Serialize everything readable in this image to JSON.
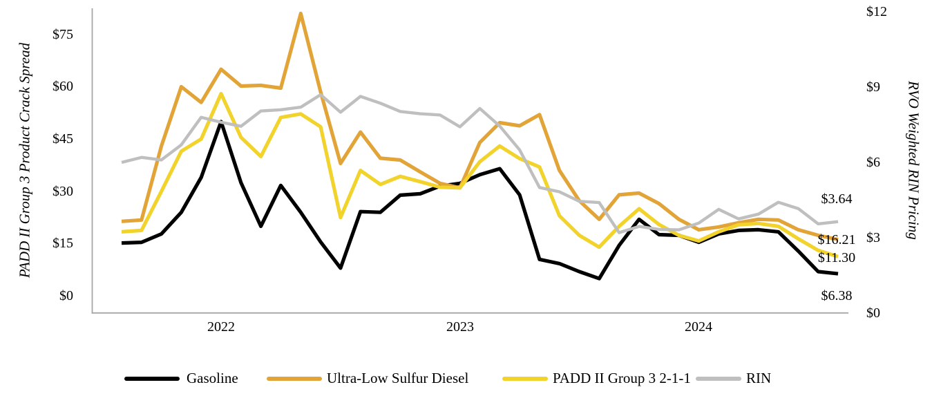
{
  "chart_data": {
    "type": "line",
    "title": "",
    "x_axis": {
      "year_labels": [
        {
          "label": "2022",
          "month_index": 5
        },
        {
          "label": "2023",
          "month_index": 17
        },
        {
          "label": "2024",
          "month_index": 29
        }
      ]
    },
    "left_axis": {
      "title": "PADD II Group 3 Product Crack Spread",
      "ticks": [
        "$0",
        "$15",
        "$30",
        "$45",
        "$60",
        "$75"
      ],
      "range": [
        0,
        75
      ]
    },
    "right_axis": {
      "title": "RVO Weighted RIN Pricing",
      "ticks": [
        "$0",
        "$3",
        "$6",
        "$9",
        "$12"
      ],
      "range": [
        0,
        12
      ]
    },
    "grid": "off",
    "legend": {
      "position": "bottom",
      "items": [
        "Gasoline",
        "Ultra-Low Sulfur Diesel",
        "PADD II Group 3 2-1-1",
        "RIN"
      ]
    },
    "series": [
      {
        "name": "Gasoline",
        "axis": "left",
        "color": "#010101",
        "width": 5.2,
        "values": [
          15.2,
          15.4,
          17.8,
          24,
          34,
          50,
          32.5,
          20,
          31.7,
          24,
          15.5,
          8,
          24.2,
          24,
          28.9,
          29.3,
          31.5,
          32.3,
          34.8,
          36.5,
          29,
          10.5,
          9.3,
          7,
          5,
          14.5,
          22,
          17.6,
          17.4,
          15.4,
          17.8,
          18.8,
          19,
          18.4,
          12.9,
          7,
          6.38
        ]
      },
      {
        "name": "Ultra-Low Sulfur Diesel",
        "axis": "left",
        "color": "#E2A437",
        "width": 5.2,
        "values": [
          21.4,
          21.8,
          43,
          60,
          55.5,
          65,
          60.2,
          60.4,
          59.6,
          81,
          58.5,
          38,
          47,
          39.5,
          39,
          35.6,
          32.3,
          31,
          44,
          49.7,
          48.8,
          52,
          36,
          27.3,
          22,
          29,
          29.5,
          26.5,
          22,
          19,
          19.8,
          21,
          22,
          21.8,
          19,
          17.4,
          16.21
        ]
      },
      {
        "name": "PADD II Group 3 2-1-1",
        "axis": "left",
        "color": "#F2D32B",
        "width": 5.2,
        "values": [
          18.4,
          18.8,
          30,
          41.5,
          45,
          58,
          45.5,
          40,
          51.2,
          52.2,
          48.5,
          22.5,
          36,
          32,
          34.3,
          32.8,
          31.2,
          31,
          38.5,
          43,
          39.4,
          37,
          23,
          17.4,
          14,
          20,
          25,
          20.5,
          17.4,
          15.8,
          18.4,
          20.4,
          20.8,
          20,
          16.4,
          13.1,
          11.3
        ]
      },
      {
        "name": "RIN",
        "axis": "right",
        "color": "#BFBFBF",
        "width": 4.4,
        "values": [
          6.0,
          6.2,
          6.1,
          6.7,
          7.8,
          7.6,
          7.44,
          8.05,
          8.1,
          8.2,
          8.7,
          8.0,
          8.63,
          8.36,
          8.03,
          7.94,
          7.89,
          7.42,
          8.15,
          7.45,
          6.5,
          5.0,
          4.83,
          4.45,
          4.4,
          3.2,
          3.45,
          3.33,
          3.31,
          3.58,
          4.13,
          3.75,
          3.94,
          4.41,
          4.16,
          3.55,
          3.64
        ]
      }
    ],
    "end_labels": [
      {
        "series": "RIN",
        "text": "$3.64"
      },
      {
        "series": "Ultra-Low Sulfur Diesel",
        "text": "$16.21"
      },
      {
        "series": "PADD II Group 3 2-1-1",
        "text": "$11.30"
      },
      {
        "series": "Gasoline",
        "text": "$6.38"
      }
    ]
  },
  "colors": {
    "axis_line": "#A6A6A6",
    "text": "#000000",
    "background": "#FFFFFF"
  }
}
